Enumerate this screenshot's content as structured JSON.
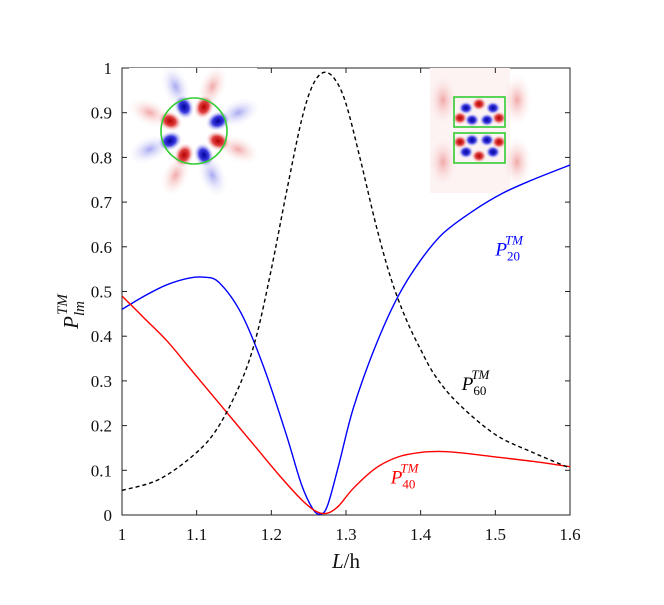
{
  "chart_data": {
    "type": "line",
    "xlabel_main": "L",
    "xlabel_rest": "/h",
    "ylabel_main": "P",
    "ylabel_sub": "lm",
    "ylabel_sup": "TM",
    "xlim": [
      1,
      1.6
    ],
    "ylim": [
      0,
      1
    ],
    "x_ticks": [
      "1",
      "1.1",
      "1.2",
      "1.3",
      "1.4",
      "1.5",
      "1.6"
    ],
    "y_ticks": [
      "0",
      "0.1",
      "0.2",
      "0.3",
      "0.4",
      "0.5",
      "0.6",
      "0.7",
      "0.8",
      "0.9",
      "1"
    ],
    "grid": false,
    "series": [
      {
        "name_main": "P",
        "name_sub": "20",
        "name_sup": "TM",
        "color": "#0000ff",
        "dash": "solid",
        "label_anchor": [
          1.5,
          0.58
        ],
        "x": [
          1.0,
          1.03,
          1.06,
          1.09,
          1.11,
          1.13,
          1.16,
          1.19,
          1.22,
          1.24,
          1.255,
          1.265,
          1.275,
          1.29,
          1.31,
          1.34,
          1.37,
          1.4,
          1.43,
          1.47,
          1.51,
          1.55,
          1.6
        ],
        "y": [
          0.46,
          0.49,
          0.515,
          0.53,
          0.532,
          0.52,
          0.45,
          0.33,
          0.18,
          0.07,
          0.015,
          0.002,
          0.02,
          0.11,
          0.24,
          0.38,
          0.49,
          0.57,
          0.63,
          0.68,
          0.72,
          0.75,
          0.783
        ]
      },
      {
        "name_main": "P",
        "name_sub": "40",
        "name_sup": "TM",
        "color": "#ff0000",
        "dash": "solid",
        "label_anchor": [
          1.36,
          0.07
        ],
        "x": [
          1.0,
          1.03,
          1.06,
          1.09,
          1.12,
          1.15,
          1.18,
          1.21,
          1.24,
          1.26,
          1.275,
          1.29,
          1.31,
          1.34,
          1.37,
          1.4,
          1.43,
          1.46,
          1.5,
          1.55,
          1.6
        ],
        "y": [
          0.49,
          0.44,
          0.39,
          0.33,
          0.27,
          0.21,
          0.15,
          0.09,
          0.035,
          0.008,
          0.004,
          0.02,
          0.06,
          0.105,
          0.13,
          0.14,
          0.142,
          0.138,
          0.13,
          0.12,
          0.108
        ]
      },
      {
        "name_main": "P",
        "name_sub": "60",
        "name_sup": "TM",
        "color": "#000000",
        "dash": "dashed",
        "label_anchor": [
          1.455,
          0.28
        ],
        "x": [
          1.0,
          1.05,
          1.1,
          1.13,
          1.16,
          1.18,
          1.2,
          1.22,
          1.24,
          1.255,
          1.27,
          1.285,
          1.3,
          1.32,
          1.34,
          1.36,
          1.38,
          1.4,
          1.42,
          1.45,
          1.5,
          1.55,
          1.6
        ],
        "y": [
          0.055,
          0.08,
          0.14,
          0.2,
          0.3,
          0.4,
          0.55,
          0.72,
          0.88,
          0.96,
          0.99,
          0.975,
          0.92,
          0.79,
          0.65,
          0.53,
          0.44,
          0.37,
          0.31,
          0.25,
          0.18,
          0.14,
          0.105
        ]
      }
    ]
  },
  "insets": {
    "left_desc": "mode field pattern with circle",
    "right_desc": "mode field pattern with two rectangles",
    "boundary_color": "#33cc33",
    "positive_color": "#cc0000",
    "negative_color": "#0000cc"
  }
}
